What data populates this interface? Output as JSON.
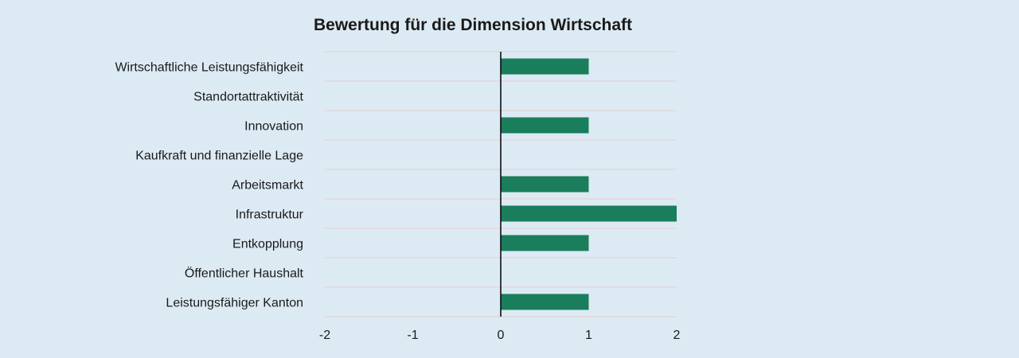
{
  "chart_data": {
    "type": "bar",
    "orientation": "horizontal",
    "title": "Bewertung für die Dimension Wirtschaft",
    "xlabel": "",
    "ylabel": "",
    "categories": [
      "Wirtschaftliche Leistungsfähigkeit",
      "Standortattraktivität",
      "Innovation",
      "Kaufkraft und finanzielle Lage",
      "Arbeitsmarkt",
      "Infrastruktur",
      "Entkopplung",
      "Öffentlicher Haushalt",
      "Leistungsfähiger Kanton"
    ],
    "values": [
      1,
      0,
      1,
      0,
      1,
      2,
      1,
      0,
      1
    ],
    "xlim": [
      -2,
      2
    ],
    "xticks": [
      "-2",
      "-1",
      "0",
      "1",
      "2"
    ],
    "grid": true,
    "legend": "none",
    "colors": {
      "bar": "#1a7d5c",
      "background": "#dceaf4",
      "grid": "#e6cfcf",
      "zero_line": "#000000"
    }
  }
}
